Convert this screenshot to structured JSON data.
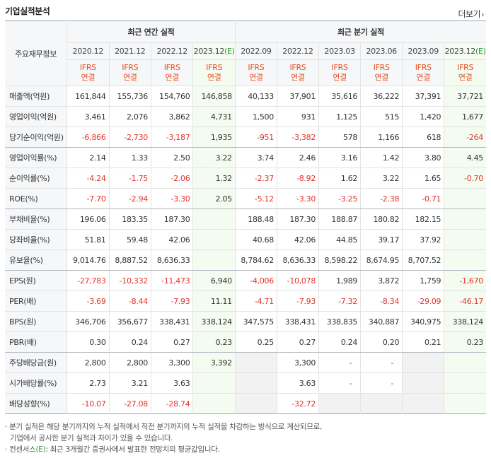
{
  "section_title": "기업실적분석",
  "more_label": "더보기",
  "more_chevron": "›",
  "label_header": "주요재무정보",
  "annual_header": "최근 연간 실적",
  "quarter_header": "최근 분기 실적",
  "annual_periods": [
    "2020.12",
    "2021.12",
    "2022.12",
    "2023.12"
  ],
  "annual_est_suffix": "(E)",
  "quarter_periods": [
    "2022.09",
    "2022.12",
    "2023.03",
    "2023.06",
    "2023.09",
    "2023.12"
  ],
  "quarter_est_suffix": "(E)",
  "ifrs_top": "IFRS",
  "ifrs_bottom": "연결",
  "colors": {
    "negative": "#e2342c",
    "ifrs": "#e8521f",
    "estimate_bg": "#f4fbf1",
    "estimate_mark": "#2f9b3a",
    "empty_bg": "#f2f2f2"
  },
  "rows": [
    {
      "label": "매출액(억원)",
      "annual": [
        "161,844",
        "155,736",
        "154,760",
        "146,858"
      ],
      "quarter": [
        "40,133",
        "37,901",
        "35,616",
        "36,222",
        "37,391",
        "37,721"
      ]
    },
    {
      "label": "영업이익(억원)",
      "annual": [
        "3,461",
        "2,076",
        "3,862",
        "4,731"
      ],
      "quarter": [
        "1,500",
        "931",
        "1,125",
        "515",
        "1,420",
        "1,677"
      ]
    },
    {
      "label": "당기순이익(억원)",
      "annual": [
        "-6,866",
        "-2,730",
        "-3,187",
        "1,935"
      ],
      "quarter": [
        "-951",
        "-3,382",
        "578",
        "1,166",
        "618",
        "-264"
      ]
    },
    {
      "label": "영업이익률(%)",
      "annual": [
        "2.14",
        "1.33",
        "2.50",
        "3.22"
      ],
      "quarter": [
        "3.74",
        "2.46",
        "3.16",
        "1.42",
        "3.80",
        "4.45"
      ]
    },
    {
      "label": "순이익률(%)",
      "annual": [
        "-4.24",
        "-1.75",
        "-2.06",
        "1.32"
      ],
      "quarter": [
        "-2.37",
        "-8.92",
        "1.62",
        "3.22",
        "1.65",
        "-0.70"
      ]
    },
    {
      "label": "ROE(%)",
      "annual": [
        "-7.70",
        "-2.94",
        "-3.30",
        "2.05"
      ],
      "quarter": [
        "-5.12",
        "-3.30",
        "-3.25",
        "-2.38",
        "-0.71",
        ""
      ]
    },
    {
      "label": "부채비율(%)",
      "annual": [
        "196.06",
        "183.35",
        "187.30",
        ""
      ],
      "quarter": [
        "188.48",
        "187.30",
        "188.87",
        "180.82",
        "182.15",
        ""
      ]
    },
    {
      "label": "당좌비율(%)",
      "annual": [
        "51.81",
        "59.48",
        "42.06",
        ""
      ],
      "quarter": [
        "40.68",
        "42.06",
        "44.85",
        "39.17",
        "37.92",
        ""
      ]
    },
    {
      "label": "유보율(%)",
      "annual": [
        "9,014.76",
        "8,887.52",
        "8,636.33",
        ""
      ],
      "quarter": [
        "8,784.62",
        "8,636.33",
        "8,598.22",
        "8,674.95",
        "8,707.52",
        ""
      ]
    },
    {
      "label": "EPS(원)",
      "annual": [
        "-27,783",
        "-10,332",
        "-11,473",
        "6,940"
      ],
      "quarter": [
        "-4,006",
        "-10,078",
        "1,989",
        "3,872",
        "1,759",
        "-1,670"
      ]
    },
    {
      "label": "PER(배)",
      "annual": [
        "-3.69",
        "-8.44",
        "-7.93",
        "11.11"
      ],
      "quarter": [
        "-4.71",
        "-7.93",
        "-7.32",
        "-8.34",
        "-29.09",
        "-46.17"
      ]
    },
    {
      "label": "BPS(원)",
      "annual": [
        "346,706",
        "356,677",
        "338,431",
        "338,124"
      ],
      "quarter": [
        "347,575",
        "338,431",
        "338,835",
        "340,887",
        "340,975",
        "338,124"
      ]
    },
    {
      "label": "PBR(배)",
      "annual": [
        "0.30",
        "0.24",
        "0.27",
        "0.23"
      ],
      "quarter": [
        "0.25",
        "0.27",
        "0.24",
        "0.20",
        "0.21",
        "0.23"
      ]
    },
    {
      "label": "주당배당금(원)",
      "annual": [
        "2,800",
        "2,800",
        "3,300",
        "3,392"
      ],
      "quarter": [
        "",
        "3,300",
        "-",
        "-",
        "",
        ""
      ]
    },
    {
      "label": "시가배당률(%)",
      "annual": [
        "2.73",
        "3.21",
        "3.63",
        ""
      ],
      "quarter": [
        "",
        "3.63",
        "-",
        "-",
        "",
        ""
      ]
    },
    {
      "label": "배당성향(%)",
      "annual": [
        "-10.07",
        "-27.08",
        "-28.74",
        ""
      ],
      "quarter": [
        "",
        "-32.72",
        "",
        "",
        "",
        ""
      ]
    }
  ],
  "group_end_rows": [
    2,
    5,
    8,
    12
  ],
  "notes": {
    "line1": "· 분기 실적은 해당 분기까지의 누적 실적에서 직전 분기까지의 누적 실적을 차감하는 방식으로 계산되므로,",
    "line2": "기업에서 공시한 분기 실적과 차이가 있을 수 있습니다.",
    "line3_prefix": "· 컨센서스",
    "line3_mark": "(E)",
    "line3_suffix": ": 최근 3개월간 증권사에서 발표한 전망치의 평균값입니다."
  }
}
